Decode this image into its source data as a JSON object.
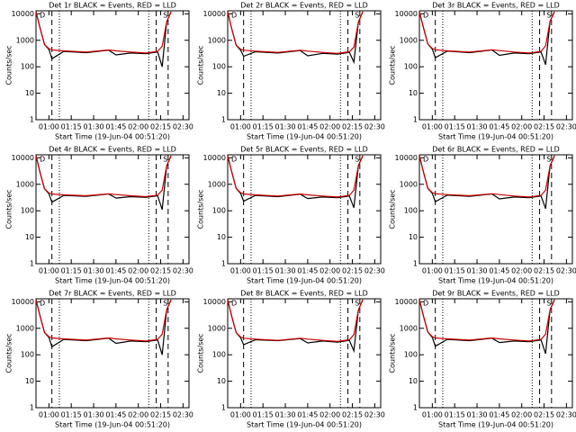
{
  "chart_data": [
    {
      "type": "line",
      "title": "Det 1r BLACK = Events, RED = LLD",
      "xlabel": "Start Time (19-Jun-04 00:51:20)",
      "ylabel": "Counts/sec",
      "ylog": true,
      "xlim": [
        51.33,
        154
      ],
      "ylim": [
        1,
        13000
      ],
      "yticks": [
        1,
        10,
        100,
        1000,
        10000
      ],
      "xticks": [
        {
          "value": 60,
          "label": "01:00"
        },
        {
          "value": 75,
          "label": "01:15"
        },
        {
          "value": 90,
          "label": "01:30"
        },
        {
          "value": 105,
          "label": "01:45"
        },
        {
          "value": 120,
          "label": "02:00"
        },
        {
          "value": 135,
          "label": "02:15"
        },
        {
          "value": 150,
          "label": "02:30"
        }
      ],
      "x": [
        51.33,
        54,
        57,
        60,
        62,
        70,
        85,
        100,
        105,
        115,
        125,
        133,
        136,
        139,
        142
      ],
      "series": [
        {
          "color": "#000000",
          "values": [
            12000,
            3000,
            700,
            450,
            200,
            380,
            340,
            420,
            280,
            330,
            310,
            360,
            100,
            5000,
            12000
          ]
        },
        {
          "color": "#cc0000",
          "values": [
            12000,
            3000,
            700,
            480,
            430,
            400,
            360,
            430,
            400,
            360,
            330,
            380,
            600,
            5000,
            12000
          ]
        }
      ],
      "dashed_lines": [
        62,
        132,
        140
      ],
      "dotted_lines": [
        67,
        127
      ],
      "annotations": [
        "D",
        "S"
      ]
    },
    {
      "type": "line",
      "title": "Det 2r BLACK = Events, RED = LLD",
      "xlabel": "Start Time (19-Jun-04 00:51:20)",
      "ylabel": "Counts/sec",
      "ylog": true,
      "xlim": [
        51.33,
        154
      ],
      "ylim": [
        1,
        13000
      ],
      "yticks": [
        1,
        10,
        100,
        1000,
        10000
      ],
      "xticks": [
        {
          "value": 60,
          "label": "01:00"
        },
        {
          "value": 75,
          "label": "01:15"
        },
        {
          "value": 90,
          "label": "01:30"
        },
        {
          "value": 105,
          "label": "01:45"
        },
        {
          "value": 120,
          "label": "02:00"
        },
        {
          "value": 135,
          "label": "02:15"
        },
        {
          "value": 150,
          "label": "02:30"
        }
      ],
      "x": [
        51.33,
        54,
        57,
        60,
        62,
        70,
        85,
        100,
        105,
        115,
        125,
        133,
        136,
        139,
        142
      ],
      "series": [
        {
          "color": "#000000",
          "values": [
            12000,
            2800,
            650,
            420,
            250,
            370,
            330,
            410,
            260,
            320,
            300,
            350,
            150,
            4800,
            12000
          ]
        },
        {
          "color": "#cc0000",
          "values": [
            12000,
            2800,
            650,
            460,
            420,
            390,
            350,
            420,
            390,
            350,
            320,
            370,
            550,
            4800,
            12000
          ]
        }
      ],
      "dashed_lines": [
        62,
        132,
        140
      ],
      "dotted_lines": [
        67,
        127
      ],
      "annotations": [
        "D",
        "S"
      ]
    },
    {
      "type": "line",
      "title": "Det 3r BLACK = Events, RED = LLD",
      "xlabel": "Start Time (19-Jun-04 00:51:20)",
      "ylabel": "Counts/sec",
      "ylog": true,
      "xlim": [
        51.33,
        154
      ],
      "ylim": [
        1,
        13000
      ],
      "yticks": [
        1,
        10,
        100,
        1000,
        10000
      ],
      "xticks": [
        {
          "value": 60,
          "label": "01:00"
        },
        {
          "value": 75,
          "label": "01:15"
        },
        {
          "value": 90,
          "label": "01:30"
        },
        {
          "value": 105,
          "label": "01:45"
        },
        {
          "value": 120,
          "label": "02:00"
        },
        {
          "value": 135,
          "label": "02:15"
        },
        {
          "value": 150,
          "label": "02:30"
        }
      ],
      "x": [
        51.33,
        54,
        57,
        60,
        62,
        70,
        85,
        100,
        105,
        115,
        125,
        133,
        136,
        139,
        142
      ],
      "series": [
        {
          "color": "#000000",
          "values": [
            12000,
            3100,
            720,
            460,
            220,
            390,
            340,
            430,
            270,
            330,
            310,
            360,
            120,
            5200,
            12000
          ]
        },
        {
          "color": "#cc0000",
          "values": [
            12000,
            3100,
            720,
            490,
            440,
            400,
            360,
            440,
            410,
            360,
            330,
            380,
            620,
            5200,
            12000
          ]
        }
      ],
      "dashed_lines": [
        62,
        132,
        140
      ],
      "dotted_lines": [
        67,
        127
      ],
      "annotations": [
        "D",
        "S"
      ]
    },
    {
      "type": "line",
      "title": "Det 4r BLACK = Events, RED = LLD",
      "xlabel": "Start Time (19-Jun-04 00:51:20)",
      "ylabel": "Counts/sec",
      "ylog": true,
      "xlim": [
        51.33,
        154
      ],
      "ylim": [
        1,
        13000
      ],
      "yticks": [
        1,
        10,
        100,
        1000,
        10000
      ],
      "xticks": [
        {
          "value": 60,
          "label": "01:00"
        },
        {
          "value": 75,
          "label": "01:15"
        },
        {
          "value": 90,
          "label": "01:30"
        },
        {
          "value": 105,
          "label": "01:45"
        },
        {
          "value": 120,
          "label": "02:00"
        },
        {
          "value": 135,
          "label": "02:15"
        },
        {
          "value": 150,
          "label": "02:30"
        }
      ],
      "x": [
        51.33,
        54,
        57,
        60,
        62,
        70,
        85,
        100,
        105,
        115,
        125,
        133,
        136,
        139,
        142
      ],
      "series": [
        {
          "color": "#000000",
          "values": [
            12000,
            2900,
            680,
            440,
            210,
            380,
            350,
            430,
            300,
            340,
            320,
            370,
            110,
            5000,
            12000
          ]
        },
        {
          "color": "#cc0000",
          "values": [
            12000,
            2900,
            680,
            470,
            430,
            400,
            370,
            440,
            410,
            370,
            340,
            390,
            600,
            5000,
            12000
          ]
        }
      ],
      "dashed_lines": [
        62,
        132,
        140
      ],
      "dotted_lines": [
        67,
        127
      ],
      "annotations": [
        "D",
        "S"
      ]
    },
    {
      "type": "line",
      "title": "Det 5r BLACK = Events, RED = LLD",
      "xlabel": "Start Time (19-Jun-04 00:51:20)",
      "ylabel": "Counts/sec",
      "ylog": true,
      "xlim": [
        51.33,
        154
      ],
      "ylim": [
        1,
        13000
      ],
      "yticks": [
        1,
        10,
        100,
        1000,
        10000
      ],
      "xticks": [
        {
          "value": 60,
          "label": "01:00"
        },
        {
          "value": 75,
          "label": "01:15"
        },
        {
          "value": 90,
          "label": "01:30"
        },
        {
          "value": 105,
          "label": "01:45"
        },
        {
          "value": 120,
          "label": "02:00"
        },
        {
          "value": 135,
          "label": "02:15"
        },
        {
          "value": 150,
          "label": "02:30"
        }
      ],
      "x": [
        51.33,
        54,
        57,
        60,
        62,
        70,
        85,
        100,
        105,
        115,
        125,
        133,
        136,
        139,
        142
      ],
      "series": [
        {
          "color": "#000000",
          "values": [
            12000,
            3000,
            700,
            450,
            230,
            380,
            340,
            420,
            290,
            330,
            310,
            360,
            130,
            5000,
            12000
          ]
        },
        {
          "color": "#cc0000",
          "values": [
            12000,
            3000,
            700,
            480,
            430,
            400,
            360,
            430,
            400,
            360,
            330,
            380,
            600,
            5000,
            12000
          ]
        }
      ],
      "dashed_lines": [
        62,
        132,
        140
      ],
      "dotted_lines": [
        67,
        127
      ],
      "annotations": [
        "D",
        "S"
      ]
    },
    {
      "type": "line",
      "title": "Det 6r BLACK = Events, RED = LLD",
      "xlabel": "Start Time (19-Jun-04 00:51:20)",
      "ylabel": "Counts/sec",
      "ylog": true,
      "xlim": [
        51.33,
        154
      ],
      "ylim": [
        1,
        13000
      ],
      "yticks": [
        1,
        10,
        100,
        1000,
        10000
      ],
      "xticks": [
        {
          "value": 60,
          "label": "01:00"
        },
        {
          "value": 75,
          "label": "01:15"
        },
        {
          "value": 90,
          "label": "01:30"
        },
        {
          "value": 105,
          "label": "01:45"
        },
        {
          "value": 120,
          "label": "02:00"
        },
        {
          "value": 135,
          "label": "02:15"
        },
        {
          "value": 150,
          "label": "02:30"
        }
      ],
      "x": [
        51.33,
        54,
        57,
        60,
        62,
        70,
        85,
        100,
        105,
        115,
        125,
        133,
        136,
        139,
        142
      ],
      "series": [
        {
          "color": "#000000",
          "values": [
            12000,
            3000,
            700,
            450,
            220,
            390,
            350,
            430,
            280,
            330,
            310,
            360,
            120,
            5000,
            12000
          ]
        },
        {
          "color": "#cc0000",
          "values": [
            12000,
            3000,
            700,
            480,
            440,
            410,
            370,
            440,
            410,
            360,
            330,
            380,
            600,
            5000,
            12000
          ]
        }
      ],
      "dashed_lines": [
        62,
        132,
        140
      ],
      "dotted_lines": [
        67,
        127
      ],
      "annotations": [
        "D",
        "S"
      ]
    },
    {
      "type": "line",
      "title": "Det 7r BLACK = Events, RED = LLD",
      "xlabel": "Start Time (19-Jun-04 00:51:20)",
      "ylabel": "Counts/sec",
      "ylog": true,
      "xlim": [
        51.33,
        154
      ],
      "ylim": [
        1,
        13000
      ],
      "yticks": [
        1,
        10,
        100,
        1000,
        10000
      ],
      "xticks": [
        {
          "value": 60,
          "label": "01:00"
        },
        {
          "value": 75,
          "label": "01:15"
        },
        {
          "value": 90,
          "label": "01:30"
        },
        {
          "value": 105,
          "label": "01:45"
        },
        {
          "value": 120,
          "label": "02:00"
        },
        {
          "value": 135,
          "label": "02:15"
        },
        {
          "value": 150,
          "label": "02:30"
        }
      ],
      "x": [
        51.33,
        54,
        57,
        60,
        62,
        70,
        85,
        100,
        105,
        115,
        125,
        133,
        136,
        139,
        142
      ],
      "series": [
        {
          "color": "#000000",
          "values": [
            12000,
            3000,
            700,
            450,
            200,
            380,
            340,
            420,
            270,
            330,
            310,
            360,
            100,
            5000,
            12000
          ]
        },
        {
          "color": "#cc0000",
          "values": [
            12000,
            3000,
            700,
            480,
            430,
            400,
            360,
            430,
            400,
            360,
            330,
            380,
            600,
            5000,
            12000
          ]
        }
      ],
      "dashed_lines": [
        62,
        132,
        140
      ],
      "dotted_lines": [
        67,
        127
      ],
      "annotations": [
        "D",
        "S"
      ]
    },
    {
      "type": "line",
      "title": "Det 8r BLACK = Events, RED = LLD",
      "xlabel": "Start Time (19-Jun-04 00:51:20)",
      "ylabel": "Counts/sec",
      "ylog": true,
      "xlim": [
        51.33,
        154
      ],
      "ylim": [
        1,
        13000
      ],
      "yticks": [
        1,
        10,
        100,
        1000,
        10000
      ],
      "xticks": [
        {
          "value": 60,
          "label": "01:00"
        },
        {
          "value": 75,
          "label": "01:15"
        },
        {
          "value": 90,
          "label": "01:30"
        },
        {
          "value": 105,
          "label": "01:45"
        },
        {
          "value": 120,
          "label": "02:00"
        },
        {
          "value": 135,
          "label": "02:15"
        },
        {
          "value": 150,
          "label": "02:30"
        }
      ],
      "x": [
        51.33,
        54,
        57,
        60,
        62,
        70,
        85,
        100,
        105,
        115,
        125,
        133,
        136,
        139,
        142
      ],
      "series": [
        {
          "color": "#000000",
          "values": [
            12000,
            2900,
            690,
            440,
            240,
            370,
            340,
            410,
            280,
            330,
            300,
            350,
            140,
            4900,
            12000
          ]
        },
        {
          "color": "#cc0000",
          "values": [
            12000,
            2900,
            690,
            470,
            420,
            390,
            350,
            420,
            390,
            350,
            320,
            370,
            580,
            4900,
            12000
          ]
        }
      ],
      "dashed_lines": [
        62,
        132,
        140
      ],
      "dotted_lines": [
        67,
        127
      ],
      "annotations": [
        "D",
        "S"
      ]
    },
    {
      "type": "line",
      "title": "Det 9r BLACK = Events, RED = LLD",
      "xlabel": "Start Time (19-Jun-04 00:51:20)",
      "ylabel": "Counts/sec",
      "ylog": true,
      "xlim": [
        51.33,
        154
      ],
      "ylim": [
        1,
        13000
      ],
      "yticks": [
        1,
        10,
        100,
        1000,
        10000
      ],
      "xticks": [
        {
          "value": 60,
          "label": "01:00"
        },
        {
          "value": 75,
          "label": "01:15"
        },
        {
          "value": 90,
          "label": "01:30"
        },
        {
          "value": 105,
          "label": "01:45"
        },
        {
          "value": 120,
          "label": "02:00"
        },
        {
          "value": 135,
          "label": "02:15"
        },
        {
          "value": 150,
          "label": "02:30"
        }
      ],
      "x": [
        51.33,
        54,
        57,
        60,
        62,
        70,
        85,
        100,
        105,
        115,
        125,
        133,
        136,
        139,
        142
      ],
      "series": [
        {
          "color": "#000000",
          "values": [
            12000,
            3000,
            710,
            450,
            210,
            380,
            340,
            420,
            290,
            330,
            310,
            360,
            110,
            5000,
            12000
          ]
        },
        {
          "color": "#cc0000",
          "values": [
            12000,
            3000,
            710,
            480,
            430,
            400,
            360,
            430,
            400,
            360,
            330,
            380,
            600,
            5000,
            12000
          ]
        }
      ],
      "dashed_lines": [
        62,
        132,
        140
      ],
      "dotted_lines": [
        67,
        127
      ],
      "annotations": [
        "D",
        "S"
      ]
    }
  ]
}
